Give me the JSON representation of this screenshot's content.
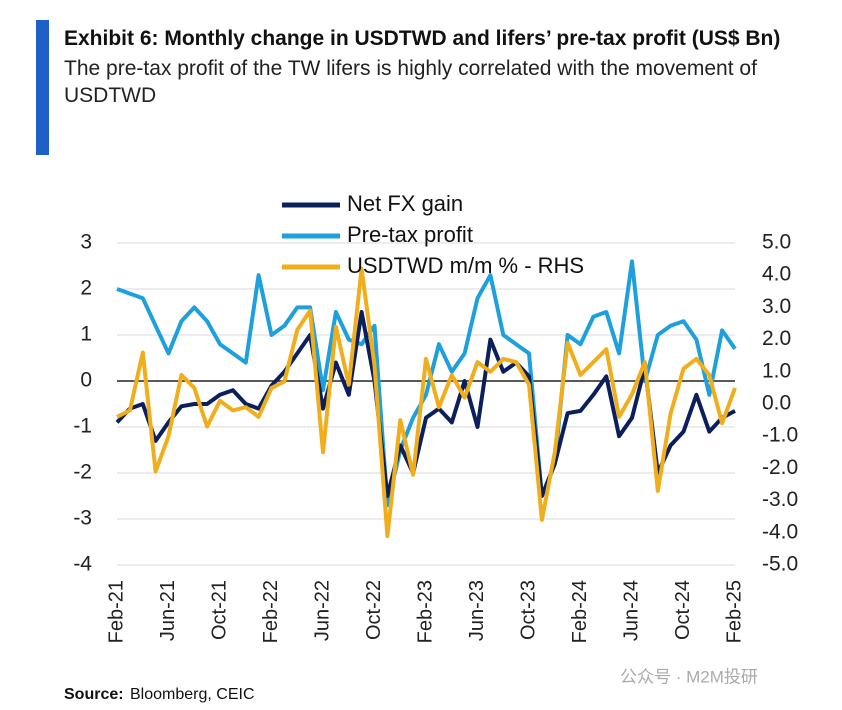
{
  "chart_data": {
    "type": "line",
    "title": "Exhibit 6: Monthly change in USDTWD and lifers’ pre-tax profit (US$ Bn)",
    "subtitle": "The pre-tax profit of the TW lifers is highly correlated with the movement of USDTWD",
    "source_label": "Source:",
    "source": "Bloomberg, CEIC",
    "watermark": "公众号 · M2M投研",
    "categories": [
      "Feb-21",
      null,
      null,
      null,
      "Jun-21",
      null,
      null,
      null,
      "Oct-21",
      null,
      null,
      null,
      "Feb-22",
      null,
      null,
      null,
      "Jun-22",
      null,
      null,
      null,
      "Oct-22",
      null,
      null,
      null,
      "Feb-23",
      null,
      null,
      null,
      "Jun-23",
      null,
      null,
      null,
      "Oct-23",
      null,
      null,
      null,
      "Feb-24",
      null,
      null,
      null,
      "Jun-24",
      null,
      null,
      null,
      "Oct-24",
      null,
      null,
      null,
      "Feb-25"
    ],
    "series": [
      {
        "name": "Net FX gain",
        "color": "#0b1f5c",
        "values": [
          -0.9,
          -0.6,
          -0.5,
          -1.3,
          -0.9,
          -0.55,
          -0.5,
          -0.5,
          -0.3,
          -0.2,
          -0.5,
          -0.6,
          -0.1,
          0.2,
          0.6,
          1.0,
          -0.6,
          0.4,
          -0.3,
          1.5,
          0.0,
          -2.5,
          -1.4,
          -2.0,
          -0.8,
          -0.6,
          -0.9,
          0.0,
          -1.0,
          0.9,
          0.2,
          0.4,
          0.1,
          -2.5,
          -1.8,
          -0.7,
          -0.65,
          -0.3,
          0.1,
          -1.2,
          -0.8,
          0.3,
          -2.0,
          -1.4,
          -1.1,
          -0.3,
          -1.1,
          -0.8,
          -0.65
        ]
      },
      {
        "name": "Pre-tax profit",
        "color": "#1ea0dc",
        "values": [
          2.0,
          1.9,
          1.8,
          1.2,
          0.6,
          1.3,
          1.6,
          1.3,
          0.8,
          0.6,
          0.4,
          2.3,
          1.0,
          1.2,
          1.6,
          1.6,
          -0.2,
          1.5,
          0.9,
          0.8,
          1.2,
          -2.7,
          -1.5,
          -0.8,
          -0.3,
          0.8,
          0.2,
          0.6,
          1.8,
          2.3,
          1.0,
          0.8,
          0.6,
          -2.5,
          -1.8,
          1.0,
          0.8,
          1.4,
          1.5,
          0.6,
          2.6,
          0.0,
          1.0,
          1.2,
          1.3,
          0.9,
          -0.3,
          1.1,
          0.7
        ]
      },
      {
        "name": "USDTWD m/m % - RHS",
        "color": "#f0ae1c",
        "axis": "y2",
        "values": [
          -0.4,
          -0.2,
          1.6,
          -2.1,
          -1.0,
          0.9,
          0.5,
          -0.7,
          0.1,
          -0.2,
          -0.1,
          -0.4,
          0.5,
          0.7,
          2.3,
          2.9,
          -1.5,
          2.4,
          0.6,
          4.2,
          1.2,
          -4.1,
          -0.5,
          -2.2,
          1.4,
          -0.1,
          0.9,
          0.2,
          1.3,
          1.0,
          1.4,
          1.3,
          0.6,
          -3.6,
          -1.5,
          1.9,
          0.9,
          1.3,
          1.7,
          -0.4,
          0.3,
          1.3,
          -2.7,
          -0.3,
          1.1,
          1.4,
          0.9,
          -0.6,
          0.5
        ]
      }
    ],
    "ylim": [
      -4,
      3
    ],
    "yticks": [
      -4,
      -3,
      -2,
      -1,
      0,
      1,
      2,
      3
    ],
    "y2lim": [
      -5,
      5
    ],
    "y2ticks": [
      {
        "value": -5,
        "label": "-5.0"
      },
      {
        "value": -4,
        "label": "-4.0"
      },
      {
        "value": -3,
        "label": "-3.0"
      },
      {
        "value": -2,
        "label": "-2.0"
      },
      {
        "value": -1,
        "label": "-1.0"
      },
      {
        "value": 0,
        "label": "0.0"
      },
      {
        "value": 1,
        "label": "1.0"
      },
      {
        "value": 2,
        "label": "2.0"
      },
      {
        "value": 3,
        "label": "3.0"
      },
      {
        "value": 4,
        "label": "4.0"
      },
      {
        "value": 5,
        "label": "5.0"
      }
    ],
    "grid": true,
    "legend": "top"
  }
}
